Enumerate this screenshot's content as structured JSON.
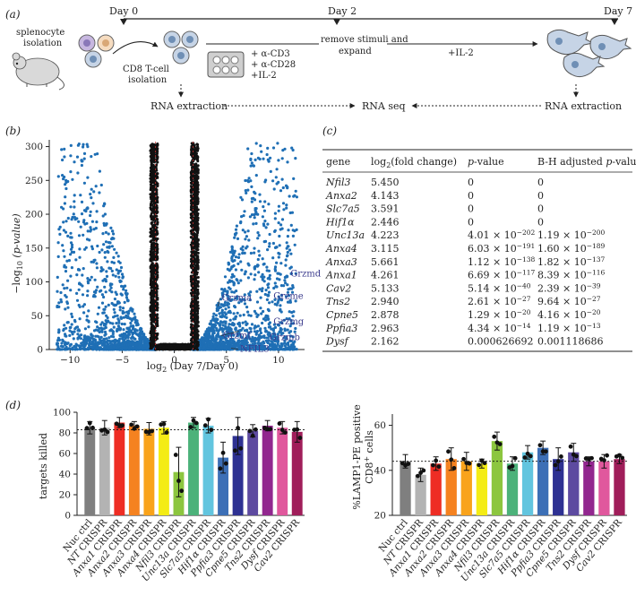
{
  "panel_labels": {
    "a": "(a)",
    "b": "(b)",
    "c": "(c)",
    "d": "(d)"
  },
  "panel_a": {
    "splenocyte_label": [
      "splenocyte",
      "isolation"
    ],
    "day_labels": [
      "Day 0",
      "Day 2",
      "Day 7"
    ],
    "cd8_label": [
      "CD8 T-cell",
      "isolation"
    ],
    "stimuli": [
      "+ α-CD3",
      "+ α-CD28",
      "+IL-2"
    ],
    "remove_label": [
      "remove stimuli and",
      "expand"
    ],
    "il2_label": "+IL-2",
    "rna_extraction_left": "RNA extraction",
    "rna_seq": "RNA seq",
    "rna_extraction_right": "RNA extraction"
  },
  "panel_b": {
    "ylabel": "−log10 (p-value)",
    "ylabel_main": "−log",
    "ylabel_sub": "10",
    "ylabel_rest": " (p-value)",
    "xlabel_main": "log",
    "xlabel_sub": "2",
    "xlabel_rest": " (Day 7/Day 0)",
    "xticks": [
      "−10",
      "−5",
      "0",
      "5",
      "10"
    ],
    "yticks": [
      "0",
      "50",
      "100",
      "150",
      "200",
      "250",
      "300"
    ],
    "gene_labels": [
      "Grzmd",
      "Grzme",
      "Grzma",
      "Grzmg",
      "Grzmf",
      "Grzmb",
      "NFIL3"
    ]
  },
  "chart_data": [
    {
      "type": "scatter",
      "title": "",
      "xlabel": "log2 (Day 7/Day 0)",
      "ylabel": "−log10 (p-value)",
      "xlim": [
        -12,
        12.5
      ],
      "ylim": [
        0,
        310
      ],
      "labeled_points": [
        {
          "name": "Grzmd",
          "x": 10.8,
          "y": 108
        },
        {
          "name": "Grzme",
          "x": 9.0,
          "y": 80
        },
        {
          "name": "Grzma",
          "x": 4.2,
          "y": 64
        },
        {
          "name": "Grzmg",
          "x": 9.0,
          "y": 45
        },
        {
          "name": "Grzmf",
          "x": 6.2,
          "y": 27
        },
        {
          "name": "Grzmb",
          "x": 8.8,
          "y": 27
        },
        {
          "name": "NFIL3",
          "x": 5.45,
          "y": 2
        }
      ]
    },
    {
      "type": "bar",
      "title": "",
      "xlabel": "",
      "ylabel": "targets killed",
      "ylim": [
        0,
        100
      ],
      "yticks": [
        "0",
        "20",
        "40",
        "60",
        "80",
        "100"
      ],
      "dotted_line": 83,
      "categories": [
        "Nuc ctrl",
        "NT CRISPR",
        "Anxa1 CRISPR",
        "Anxa2 CRISPR",
        "Anxa3 CRISPR",
        "Anxa4 CRISPR",
        "Nfil3 CRISPR",
        "Unc13a CRISPR",
        "Slc7a5 CRISPR",
        "Hif1α CRISPR",
        "Ppfia3 CRISPR",
        "Cpne5 CRISPR",
        "Tns2 CRISPR",
        "Dysf CRISPR",
        "Cav2 CRISPR"
      ],
      "values": [
        85,
        85,
        90,
        87,
        84,
        85,
        42,
        90,
        87,
        56,
        77,
        82,
        87,
        85,
        81
      ],
      "errors": [
        6,
        7,
        5,
        4,
        6,
        6,
        24,
        5,
        7,
        15,
        18,
        6,
        5,
        6,
        10
      ]
    },
    {
      "type": "bar",
      "title": "",
      "xlabel": "",
      "ylabel": "%LAMP1-PE positive CD8+ cells",
      "ylim": [
        20,
        65
      ],
      "yticks": [
        "20",
        "40",
        "60"
      ],
      "dotted_line": 44,
      "categories": [
        "Nuc ctrl",
        "NT CRISPR",
        "Anxa1 CRISPR",
        "Anxa2 CRISPR",
        "Anxa3 CRISPR",
        "Anxa4 CRISPR",
        "Nfil3 CRISPR",
        "Unc13a CRISPR",
        "Slc7a5 CRISPR",
        "Hif1α CRISPR",
        "Ppfia3 CRISPR",
        "Cpne5 CRISPR",
        "Tns2 CRISPR",
        "Dysf CRISPR",
        "Cav2 CRISPR"
      ],
      "values": [
        44,
        38,
        43,
        45,
        44,
        43,
        53,
        43,
        48,
        50,
        45,
        48,
        44,
        44,
        45
      ],
      "errors": [
        3,
        3,
        3,
        5,
        4,
        2,
        4,
        3,
        3,
        3,
        5,
        4,
        2,
        3,
        2
      ]
    },
    {
      "type": "table",
      "title": "",
      "columns": [
        "gene",
        "log2(fold change)",
        "p-value",
        "B-H adjusted p-value"
      ],
      "rows": [
        [
          "Nfil3",
          "5.450",
          "0",
          "0"
        ],
        [
          "Anxa2",
          "4.143",
          "0",
          "0"
        ],
        [
          "Slc7a5",
          "3.591",
          "0",
          "0"
        ],
        [
          "Hif1α",
          "2.446",
          "0",
          "0"
        ],
        [
          "Unc13a",
          "4.223",
          "4.01 × 10−202",
          "1.19 × 10−200"
        ],
        [
          "Anxa4",
          "3.115",
          "6.03 × 10−191",
          "1.60 × 10−189"
        ],
        [
          "Anxa3",
          "5.661",
          "1.12 × 10−138",
          "1.82 × 10−137"
        ],
        [
          "Anxa1",
          "4.261",
          "6.69 × 10−117",
          "8.39 × 10−116"
        ],
        [
          "Cav2",
          "5.133",
          "5.14 × 10−40",
          "2.39 × 10−39"
        ],
        [
          "Tns2",
          "2.940",
          "2.61 × 10−27",
          "9.64 × 10−27"
        ],
        [
          "Cpne5",
          "2.878",
          "1.29 × 10−20",
          "4.16 × 10−20"
        ],
        [
          "Ppfia3",
          "2.963",
          "4.34 × 10−14",
          "1.19 × 10−13"
        ],
        [
          "Dysf",
          "2.162",
          "0.000626692",
          "0.001118686"
        ]
      ]
    }
  ],
  "table_headers": {
    "gene": "gene",
    "fc_main": "log",
    "fc_sub": "2",
    "fc_rest": "(fold change)",
    "p": "p",
    "p_rest": "-value",
    "bh": "B-H adjusted ",
    "bh_p": "p",
    "bh_rest": "-value"
  },
  "panel_d": {
    "left_ylabel": "targets killed",
    "right_ylabel_1": "%LAMP1-PE positive",
    "right_ylabel_2": "CD8",
    "right_ylabel_sup": "+",
    "right_ylabel_3": " cells",
    "colors": [
      "#7f7f7f",
      "#b3b3b3",
      "#ee2d24",
      "#f58220",
      "#f9a31b",
      "#f4ec15",
      "#8cc63f",
      "#4cb27a",
      "#62c5df",
      "#3c6fb6",
      "#2e3192",
      "#5d4aa0",
      "#92278f",
      "#e0589d",
      "#a01e5a"
    ]
  }
}
